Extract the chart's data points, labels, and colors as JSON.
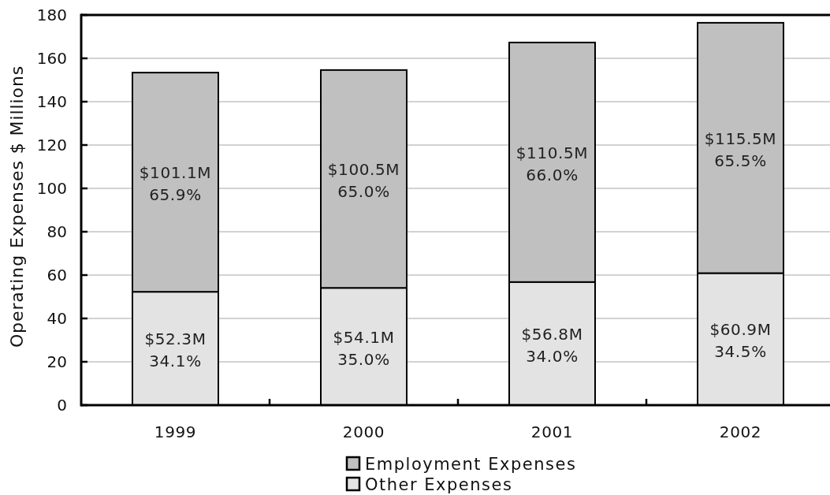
{
  "chart_data": {
    "type": "bar",
    "stacked": true,
    "categories": [
      "1999",
      "2000",
      "2001",
      "2002"
    ],
    "ylabel": "Operating Expenses $ Millions",
    "ylim": [
      0,
      180
    ],
    "yticks": [
      0,
      20,
      40,
      60,
      80,
      100,
      120,
      140,
      160,
      180
    ],
    "grid": "y",
    "legend": "bottom",
    "series": [
      {
        "name": "Other Expenses",
        "color": "#e3e3e3",
        "values": [
          52.3,
          54.1,
          56.8,
          60.9
        ],
        "value_labels": [
          "$52.3M",
          "$54.1M",
          "$56.8M",
          "$60.9M"
        ]
      },
      {
        "name": "Employment Expenses",
        "color": "#c0c0c0",
        "values": [
          101.1,
          100.5,
          110.5,
          115.5
        ],
        "value_labels": [
          "$101.1M",
          "$100.5M",
          "$110.5M",
          "$115.5M"
        ]
      }
    ],
    "annotations": [
      "34.1%",
      "35.0%",
      "34.0%",
      "34.5%",
      "65.9%",
      "65.0%",
      "66.0%",
      "65.5%"
    ]
  }
}
